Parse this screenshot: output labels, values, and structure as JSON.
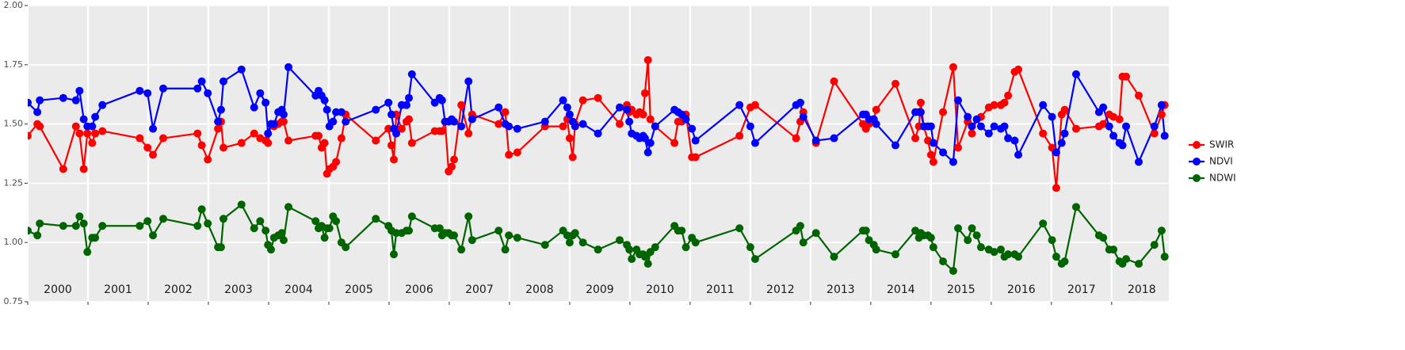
{
  "chart_data": {
    "type": "line",
    "x": [
      2000.0,
      2000.16,
      2000.2,
      2000.59,
      2000.8,
      2000.86,
      2000.93,
      2000.99,
      2001.07,
      2001.12,
      2001.24,
      2001.86,
      2001.99,
      2002.08,
      2002.25,
      2002.82,
      2002.89,
      2002.99,
      2003.16,
      2003.21,
      2003.25,
      2003.55,
      2003.76,
      2003.86,
      2003.95,
      2003.99,
      2004.04,
      2004.09,
      2004.16,
      2004.22,
      2004.25,
      2004.33,
      2004.78,
      2004.83,
      2004.88,
      2004.93,
      2004.97,
      2005.01,
      2005.07,
      2005.12,
      2005.21,
      2005.28,
      2005.78,
      2005.99,
      2006.04,
      2006.08,
      2006.12,
      2006.21,
      2006.29,
      2006.33,
      2006.38,
      2006.76,
      2006.84,
      2006.88,
      2006.93,
      2006.99,
      2007.04,
      2007.08,
      2007.2,
      2007.32,
      2007.38,
      2007.82,
      2007.93,
      2007.99,
      2008.13,
      2008.59,
      2008.89,
      2008.96,
      2009.0,
      2009.05,
      2009.09,
      2009.22,
      2009.47,
      2009.83,
      2009.95,
      2009.99,
      2010.03,
      2010.11,
      2010.16,
      2010.22,
      2010.25,
      2010.3,
      2010.34,
      2010.42,
      2010.74,
      2010.8,
      2010.86,
      2010.93,
      2011.03,
      2011.09,
      2011.82,
      2012.0,
      2012.08,
      2012.76,
      2012.83,
      2012.88,
      2013.09,
      2013.39,
      2013.87,
      2013.92,
      2013.97,
      2014.05,
      2014.09,
      2014.41,
      2014.74,
      2014.8,
      2014.83,
      2014.88,
      2014.95,
      2015.0,
      2015.04,
      2015.2,
      2015.37,
      2015.45,
      2015.61,
      2015.68,
      2015.76,
      2015.83,
      2015.96,
      2016.05,
      2016.16,
      2016.22,
      2016.28,
      2016.39,
      2016.45,
      2016.86,
      2017.01,
      2017.08,
      2017.17,
      2017.22,
      2017.41,
      2017.79,
      2017.86,
      2017.96,
      2018.03,
      2018.13,
      2018.18,
      2018.24,
      2018.45,
      2018.71,
      2018.83,
      2018.88
    ],
    "series": [
      {
        "name": "SWIR",
        "color": "#ff0000",
        "values": [
          1.45,
          1.5,
          1.49,
          1.31,
          1.49,
          1.46,
          1.31,
          1.46,
          1.42,
          1.46,
          1.47,
          1.44,
          1.4,
          1.37,
          1.44,
          1.46,
          1.41,
          1.35,
          1.48,
          1.51,
          1.4,
          1.42,
          1.46,
          1.44,
          1.43,
          1.42,
          1.5,
          1.49,
          1.5,
          1.51,
          1.51,
          1.43,
          1.45,
          1.45,
          1.4,
          1.42,
          1.29,
          1.31,
          1.32,
          1.34,
          1.44,
          1.54,
          1.43,
          1.48,
          1.41,
          1.35,
          1.54,
          1.48,
          1.51,
          1.52,
          1.42,
          1.47,
          1.47,
          1.47,
          1.51,
          1.3,
          1.32,
          1.35,
          1.58,
          1.46,
          1.54,
          1.5,
          1.55,
          1.37,
          1.38,
          1.49,
          1.49,
          1.52,
          1.44,
          1.36,
          1.5,
          1.6,
          1.61,
          1.5,
          1.58,
          1.55,
          1.56,
          1.54,
          1.55,
          1.54,
          1.63,
          1.77,
          1.52,
          1.49,
          1.42,
          1.51,
          1.51,
          1.54,
          1.36,
          1.36,
          1.45,
          1.57,
          1.58,
          1.44,
          1.51,
          1.55,
          1.42,
          1.68,
          1.5,
          1.48,
          1.5,
          1.52,
          1.56,
          1.67,
          1.44,
          1.49,
          1.59,
          1.49,
          1.43,
          1.37,
          1.34,
          1.55,
          1.74,
          1.4,
          1.51,
          1.46,
          1.52,
          1.53,
          1.57,
          1.58,
          1.58,
          1.59,
          1.62,
          1.72,
          1.73,
          1.46,
          1.4,
          1.23,
          1.54,
          1.56,
          1.48,
          1.49,
          1.5,
          1.54,
          1.53,
          1.52,
          1.7,
          1.7,
          1.62,
          1.46,
          1.54,
          1.58
        ]
      },
      {
        "name": "NDVI",
        "color": "#0000ff",
        "values": [
          1.59,
          1.55,
          1.6,
          1.61,
          1.6,
          1.64,
          1.52,
          1.49,
          1.49,
          1.53,
          1.58,
          1.64,
          1.63,
          1.48,
          1.65,
          1.65,
          1.68,
          1.63,
          1.51,
          1.56,
          1.68,
          1.73,
          1.57,
          1.63,
          1.59,
          1.46,
          1.5,
          1.5,
          1.55,
          1.56,
          1.54,
          1.74,
          1.62,
          1.64,
          1.62,
          1.6,
          1.56,
          1.49,
          1.51,
          1.55,
          1.55,
          1.51,
          1.56,
          1.59,
          1.54,
          1.48,
          1.46,
          1.58,
          1.58,
          1.61,
          1.71,
          1.59,
          1.61,
          1.6,
          1.51,
          1.51,
          1.52,
          1.51,
          1.49,
          1.68,
          1.52,
          1.57,
          1.5,
          1.49,
          1.48,
          1.51,
          1.6,
          1.57,
          1.54,
          1.51,
          1.49,
          1.5,
          1.46,
          1.57,
          1.56,
          1.51,
          1.46,
          1.45,
          1.44,
          1.45,
          1.44,
          1.38,
          1.42,
          1.49,
          1.56,
          1.55,
          1.54,
          1.52,
          1.48,
          1.43,
          1.58,
          1.49,
          1.42,
          1.58,
          1.59,
          1.53,
          1.43,
          1.44,
          1.54,
          1.54,
          1.52,
          1.52,
          1.5,
          1.41,
          1.55,
          1.55,
          1.55,
          1.49,
          1.49,
          1.49,
          1.42,
          1.38,
          1.34,
          1.6,
          1.53,
          1.49,
          1.52,
          1.49,
          1.46,
          1.49,
          1.48,
          1.49,
          1.44,
          1.43,
          1.37,
          1.58,
          1.53,
          1.38,
          1.42,
          1.46,
          1.71,
          1.55,
          1.57,
          1.49,
          1.45,
          1.42,
          1.41,
          1.49,
          1.34,
          1.49,
          1.58,
          1.45
        ]
      },
      {
        "name": "NDWI",
        "color": "#006400",
        "values": [
          1.05,
          1.03,
          1.08,
          1.07,
          1.07,
          1.11,
          1.08,
          0.96,
          1.02,
          1.02,
          1.07,
          1.07,
          1.09,
          1.03,
          1.1,
          1.07,
          1.14,
          1.08,
          0.98,
          0.98,
          1.1,
          1.16,
          1.06,
          1.09,
          1.05,
          0.99,
          0.97,
          1.02,
          1.03,
          1.04,
          1.01,
          1.15,
          1.09,
          1.06,
          1.07,
          1.02,
          1.06,
          1.06,
          1.11,
          1.09,
          1.0,
          0.98,
          1.1,
          1.07,
          1.05,
          0.95,
          1.04,
          1.04,
          1.05,
          1.05,
          1.11,
          1.06,
          1.06,
          1.03,
          1.04,
          1.04,
          1.03,
          1.03,
          0.97,
          1.11,
          1.01,
          1.05,
          0.97,
          1.03,
          1.02,
          0.99,
          1.05,
          1.03,
          1.0,
          1.03,
          1.04,
          1.0,
          0.97,
          1.01,
          0.99,
          0.97,
          0.93,
          0.97,
          0.95,
          0.95,
          0.94,
          0.91,
          0.96,
          0.98,
          1.07,
          1.05,
          1.05,
          0.98,
          1.02,
          1.0,
          1.06,
          0.98,
          0.93,
          1.05,
          1.07,
          1.0,
          1.04,
          0.94,
          1.05,
          1.05,
          1.01,
          0.99,
          0.97,
          0.95,
          1.05,
          1.02,
          1.04,
          1.03,
          1.03,
          1.02,
          0.98,
          0.92,
          0.88,
          1.06,
          1.01,
          1.06,
          1.03,
          0.98,
          0.97,
          0.96,
          0.97,
          0.94,
          0.95,
          0.95,
          0.94,
          1.08,
          1.01,
          0.94,
          0.91,
          0.92,
          1.15,
          1.03,
          1.02,
          0.97,
          0.97,
          0.92,
          0.91,
          0.93,
          0.91,
          0.99,
          1.05,
          0.94
        ]
      }
    ],
    "xlim": [
      2000,
      2018.95
    ],
    "xticks": [
      2000,
      2001,
      2002,
      2003,
      2004,
      2005,
      2006,
      2007,
      2008,
      2009,
      2010,
      2011,
      2012,
      2013,
      2014,
      2015,
      2016,
      2017,
      2018
    ],
    "ylim": [
      0.75,
      2.0
    ],
    "yticks": [
      {
        "value": 0.75,
        "label": "0.75"
      },
      {
        "value": 1.0,
        "label": "1.00"
      },
      {
        "value": 1.25,
        "label": "1.25"
      },
      {
        "value": 1.5,
        "label": "1.50"
      },
      {
        "value": 1.75,
        "label": "1.75"
      },
      {
        "value": 2.0,
        "label": "2.00"
      }
    ],
    "grid": true,
    "legend": "right"
  }
}
